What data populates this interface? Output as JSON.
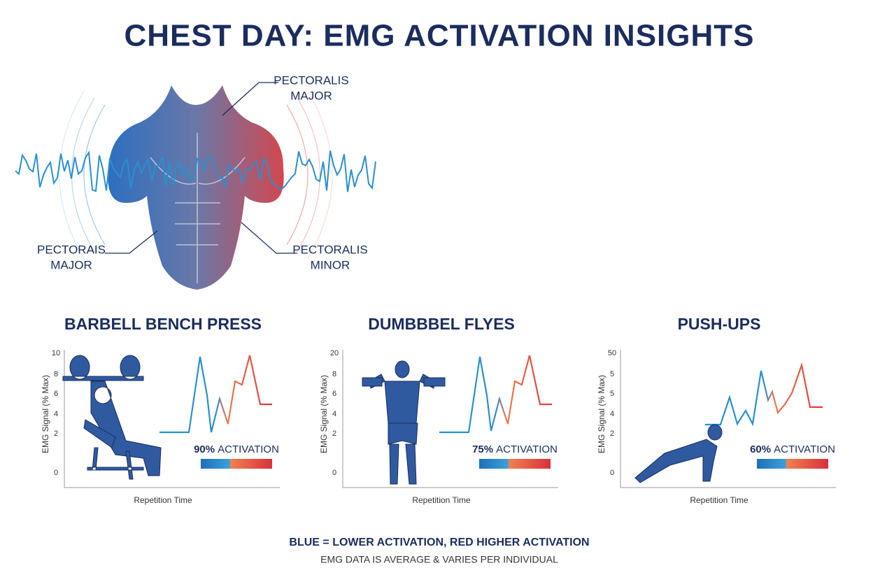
{
  "title": "CHEST DAY: EMG ACTIVATION INSIGHTS",
  "anatomy_labels": [
    {
      "lines": [
        "PECTORALIS",
        "MAJOR"
      ]
    },
    {
      "lines": [
        "PECTORAIS",
        "MAJOR"
      ]
    },
    {
      "lines": [
        "PECTORALIS",
        "MINOR"
      ]
    }
  ],
  "panels": [
    {
      "title": "BARBELL BENCH PRESS",
      "y_label": "EMG Signal (% Max)",
      "y_ticks": [
        "10",
        "8",
        "6",
        "4",
        "2",
        "0"
      ],
      "x_label": "Repetition Time",
      "activation": "90%",
      "activation_label": "ACTIVATION"
    },
    {
      "title": "DUMBBBEL FLYES",
      "y_label": "EMG Signal (% Max)",
      "y_ticks": [
        "20",
        "8",
        "6",
        "4",
        "2",
        "0"
      ],
      "x_label": "Repetition Time",
      "activation": "75%",
      "activation_label": "ACTIVATION"
    },
    {
      "title": "PUSH-UPS",
      "y_label": "EMG Signal (% Max)",
      "y_ticks": [
        "50",
        "5",
        "5",
        "4",
        "2",
        "0"
      ],
      "x_label": "Repetition Time",
      "activation": "60%",
      "activation_label": "ACTIVATION"
    }
  ],
  "footer": {
    "line1": "BLUE = LOWER ACTIVATION, RED HIGHER ACTIVATION",
    "line2": "EMG DATA IS AVERAGE & VARIES PER INDIVIDUAL"
  }
}
